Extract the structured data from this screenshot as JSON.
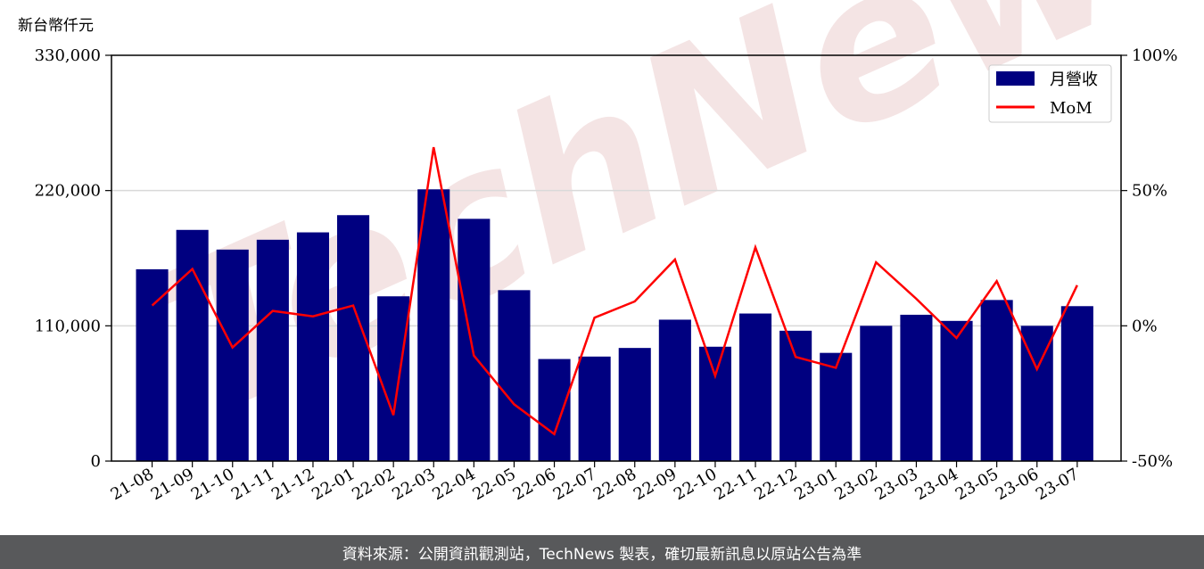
{
  "chart_data": {
    "type": "bar",
    "unit_label": "新台幣仟元",
    "categories": [
      "21-08",
      "21-09",
      "21-10",
      "21-11",
      "21-12",
      "22-01",
      "22-02",
      "22-03",
      "22-04",
      "22-05",
      "22-06",
      "22-07",
      "22-08",
      "22-09",
      "22-10",
      "22-11",
      "22-12",
      "23-01",
      "23-02",
      "23-03",
      "23-04",
      "23-05",
      "23-06",
      "23-07"
    ],
    "series": [
      {
        "name": "月營收",
        "type": "bar",
        "axis": "left",
        "color": "#000080",
        "values": [
          156000,
          188000,
          172000,
          180000,
          186000,
          200000,
          134000,
          221000,
          197000,
          139000,
          83000,
          85000,
          92000,
          115000,
          93000,
          120000,
          106000,
          88000,
          110000,
          119000,
          114000,
          131000,
          110000,
          126000
        ]
      },
      {
        "name": "MoM",
        "type": "line",
        "axis": "right",
        "color": "#ff0000",
        "values": [
          7.5,
          21,
          -8,
          5.5,
          3.5,
          7.5,
          -33,
          66,
          -11,
          -29,
          -40,
          3,
          9,
          24.5,
          -18.5,
          29,
          -11.5,
          -15.5,
          23.5,
          10,
          -4.5,
          16.5,
          -16,
          15
        ]
      }
    ],
    "y_left": {
      "min": 0,
      "max": 330000,
      "ticks": [
        0,
        110000,
        220000,
        330000
      ],
      "tick_labels": [
        "0",
        "110,000",
        "220,000",
        "330,000"
      ]
    },
    "y_right": {
      "min": -50,
      "max": 100,
      "ticks": [
        -50,
        0,
        50,
        100
      ],
      "tick_labels": [
        "-50%",
        "0%",
        "50%",
        "100%"
      ]
    },
    "grid": "horizontal",
    "legend_position": "top-right"
  },
  "watermark": "TechNews",
  "footer": {
    "text": "資料來源：公開資訊觀測站，TechNews 製表，確切最新訊息以原站公告為準"
  },
  "colors": {
    "bar": "#000080",
    "line": "#ff0000",
    "footer_bg": "#58595b",
    "grid": "#d9d9d9"
  }
}
